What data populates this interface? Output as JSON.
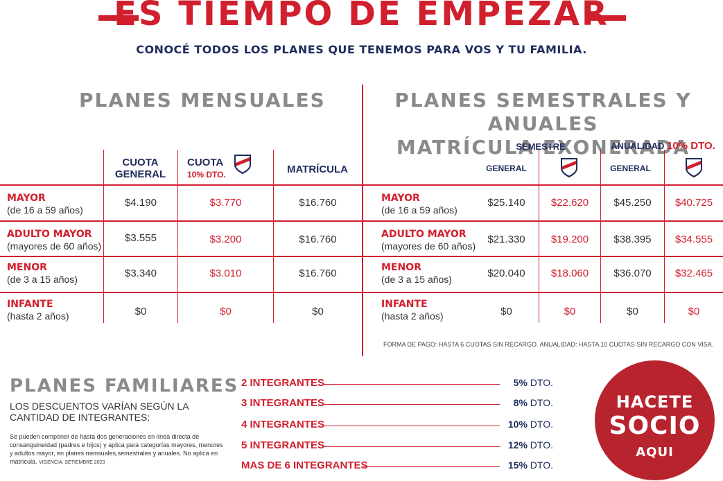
{
  "header": {
    "title": "ES TIEMPO DE EMPEZAR",
    "subtitle": "CONOCÉ TODOS LOS PLANES QUE TENEMOS PARA VOS Y TU FAMILIA."
  },
  "monthly": {
    "title": "PLANES MENSUALES",
    "headers": {
      "general_line1": "CUOTA",
      "general_line2": "GENERAL",
      "discount_line1": "CUOTA",
      "discount_line2": "10% DTO.",
      "enrollment": "MATRÍCULA"
    },
    "rows": [
      {
        "name": "MAYOR",
        "sub": "(de 16 a 59 años)",
        "general": "$4.190",
        "discount": "$3.770",
        "enrollment": "$16.760"
      },
      {
        "name": "ADULTO MAYOR",
        "sub": "(mayores de 60 años)",
        "general": "$3.555",
        "discount": "$3.200",
        "enrollment": "$16.760"
      },
      {
        "name": "MENOR",
        "sub": "(de 3 a 15 años)",
        "general": "$3.340",
        "discount": "$3.010",
        "enrollment": "$16.760"
      },
      {
        "name": "INFANTE",
        "sub": "(hasta 2 años)",
        "general": "$0",
        "discount": "$0",
        "enrollment": "$0"
      }
    ]
  },
  "semester": {
    "title_line1": "PLANES SEMESTRALES Y ANUALES",
    "title_line2": "MATRÍCULA EXONERADA",
    "semester_label": "SEMESTRE",
    "annual_label": "ANUALIDAD",
    "annual_discount": "10% DTO.",
    "general_label": "GENERAL",
    "rows": [
      {
        "name": "MAYOR",
        "sub": "(de 16 a 59 años)",
        "sem_general": "$25.140",
        "sem_member": "$22.620",
        "ann_general": "$45.250",
        "ann_member": "$40.725"
      },
      {
        "name": "ADULTO MAYOR",
        "sub": "(mayores de 60 años)",
        "sem_general": "$21.330",
        "sem_member": "$19.200",
        "ann_general": "$38.395",
        "ann_member": "$34.555"
      },
      {
        "name": "MENOR",
        "sub": "(de 3 a 15 años)",
        "sem_general": "$20.040",
        "sem_member": "$18.060",
        "ann_general": "$36.070",
        "ann_member": "$32.465"
      },
      {
        "name": "INFANTE",
        "sub": "(hasta 2 años)",
        "sem_general": "$0",
        "sem_member": "$0",
        "ann_general": "$0",
        "ann_member": "$0"
      }
    ],
    "payment_note": "FORMA DE PAGO: HASTA 6 CUOTAS SIN RECARGO. ANUALIDAD: HASTA 10 CUOTAS SIN RECARGO CON VISA."
  },
  "family": {
    "title": "PLANES FAMILIARES",
    "description": "LOS DESCUENTOS VARÍAN SEGÚN LA CANTIDAD DE INTEGRANTES:",
    "fine_print": "Se pueden componer de hasta dos generaciones en línea directa de consanguineidad  (padres e hijos)  y  aplica para categorías mayores, menores y adultos mayor, en planes mensuales,semestrales y anuales. No aplica en matrícula.",
    "validity": "VIGENCIA: SETIEMBRE 2023",
    "tiers": [
      {
        "label": "2 INTEGRANTES",
        "pct": "5%",
        "suffix": "DTO."
      },
      {
        "label": "3 INTEGRANTES",
        "pct": "8%",
        "suffix": "DTO."
      },
      {
        "label": "4 INTEGRANTES",
        "pct": "10%",
        "suffix": "DTO."
      },
      {
        "label": "5 INTEGRANTES",
        "pct": "12%",
        "suffix": "DTO."
      },
      {
        "label": "MAS DE 6 INTEGRANTES",
        "pct": "15%",
        "suffix": "DTO."
      }
    ]
  },
  "cta": {
    "line1": "HACETE",
    "line2": "SOCIO",
    "line3": "AQUI"
  },
  "badge": {
    "text": "C.N.deF."
  },
  "colors": {
    "red": "#d0202e",
    "navy": "#1f2d5c",
    "gray": "#8a8a8a",
    "cta": "#b8242e"
  }
}
